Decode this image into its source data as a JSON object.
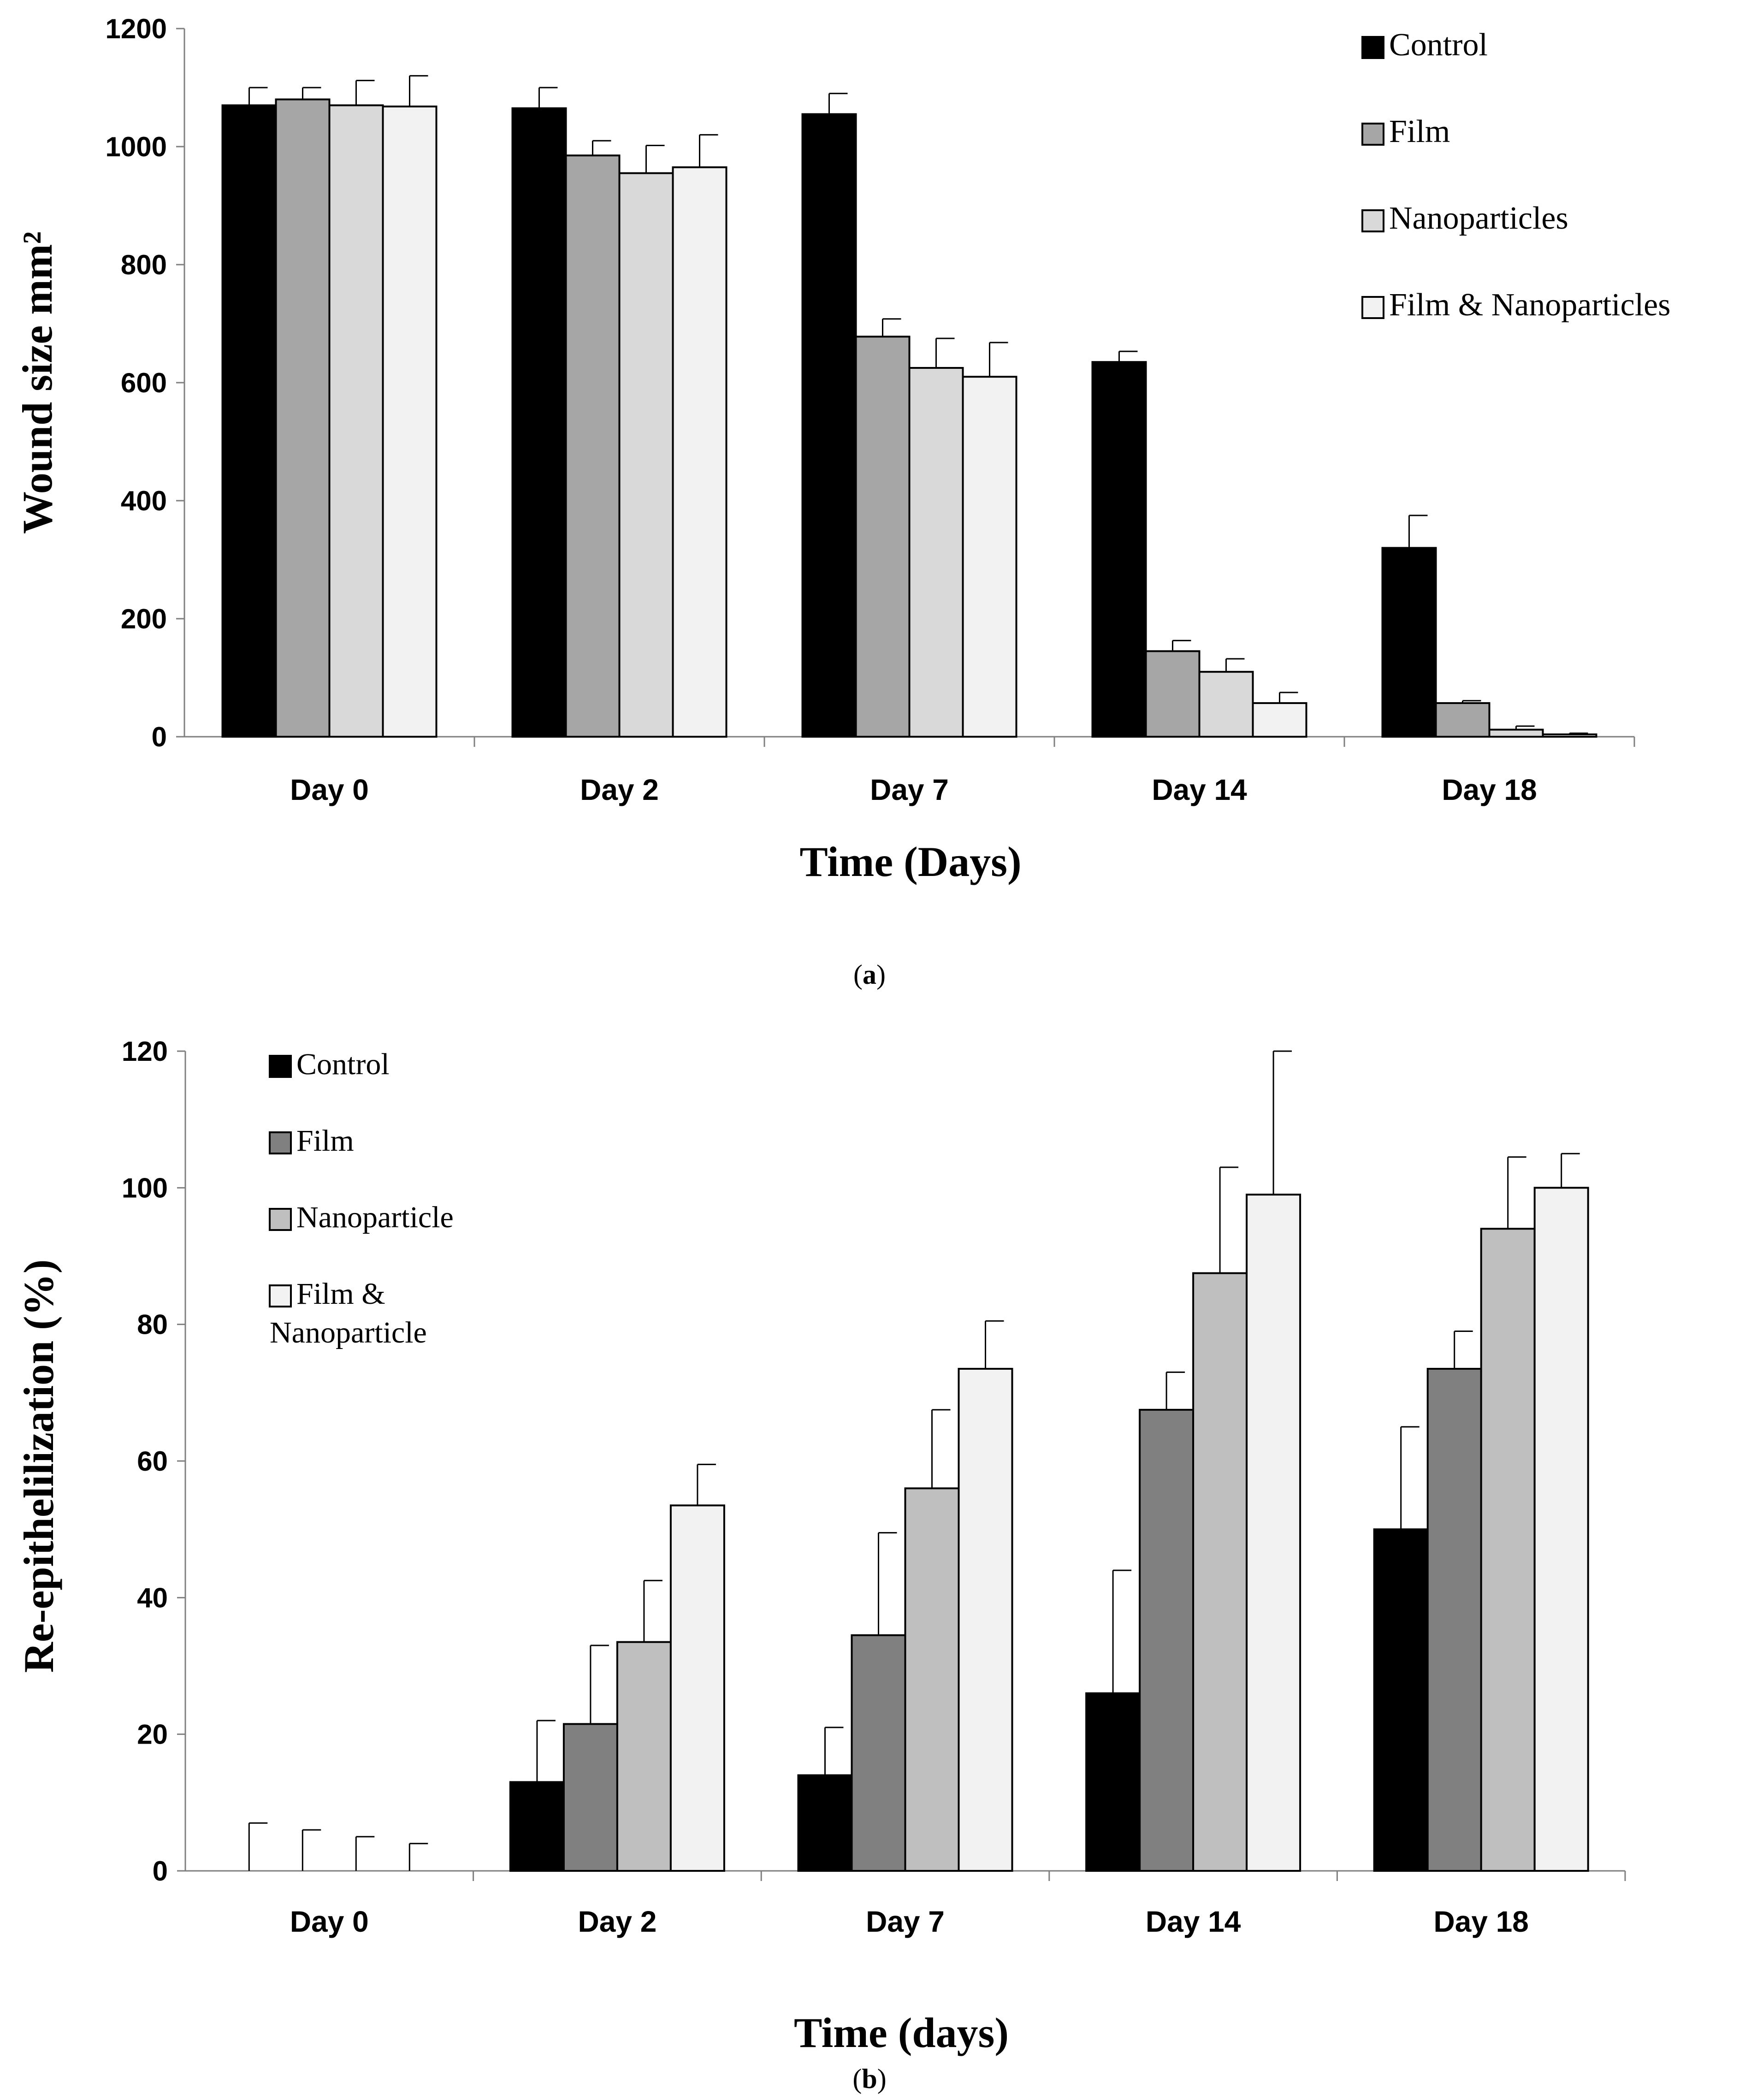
{
  "chart_data": [
    {
      "type": "bar",
      "panel": "a",
      "categories": [
        "Day 0",
        "Day 2",
        "Day 7",
        "Day 14",
        "Day 18"
      ],
      "series": [
        {
          "name": "Control",
          "color": "#000000",
          "values": [
            1070,
            1065,
            1055,
            635,
            320
          ],
          "errors": [
            30,
            35,
            35,
            18,
            55
          ]
        },
        {
          "name": "Film",
          "color": "#a6a6a6",
          "values": [
            1080,
            985,
            678,
            145,
            57
          ],
          "errors": [
            20,
            25,
            30,
            18,
            4
          ]
        },
        {
          "name": "Nanoparticles",
          "color": "#d9d9d9",
          "values": [
            1070,
            955,
            625,
            110,
            12
          ],
          "errors": [
            42,
            47,
            50,
            22,
            6
          ]
        },
        {
          "name": "Film & Nanoparticles",
          "color": "#f2f2f2",
          "values": [
            1068,
            965,
            610,
            57,
            4
          ],
          "errors": [
            52,
            55,
            58,
            18,
            2
          ]
        }
      ],
      "xlabel": "Time (Days)",
      "ylabel": "Wound size mm²",
      "ylim": [
        0,
        1200
      ],
      "yticks": [
        "0",
        "200",
        "400",
        "600",
        "800",
        "1000",
        "1200"
      ],
      "legend": "top-right",
      "grid": false,
      "caption": "a"
    },
    {
      "type": "bar",
      "panel": "b",
      "categories": [
        "Day 0",
        "Day 2",
        "Day 7",
        "Day 14",
        "Day 18"
      ],
      "series": [
        {
          "name": "Control",
          "color": "#000000",
          "values": [
            0,
            13,
            14,
            26,
            50
          ],
          "errors": [
            7,
            9,
            7,
            18,
            15
          ]
        },
        {
          "name": "Film",
          "color": "#808080",
          "values": [
            0,
            21.5,
            34.5,
            67.5,
            73.5
          ],
          "errors": [
            6,
            11.5,
            15,
            5.5,
            5.5
          ]
        },
        {
          "name": "Nanoparticle",
          "color": "#bfbfbf",
          "values": [
            0,
            33.5,
            56,
            87.5,
            94
          ],
          "errors": [
            5,
            9,
            11.5,
            15.5,
            10.5
          ]
        },
        {
          "name": "Film & Nanoparticle",
          "color": "#f2f2f2",
          "values": [
            0,
            53.5,
            73.5,
            99,
            100
          ],
          "errors": [
            4,
            6,
            7,
            21,
            5
          ]
        }
      ],
      "xlabel": "Time (days)",
      "ylabel": "Re-epithelilization (%)",
      "ylim": [
        0,
        120
      ],
      "yticks": [
        "0",
        "20",
        "40",
        "60",
        "80",
        "100",
        "120"
      ],
      "legend": "top-left",
      "grid": false,
      "caption": "b"
    }
  ]
}
